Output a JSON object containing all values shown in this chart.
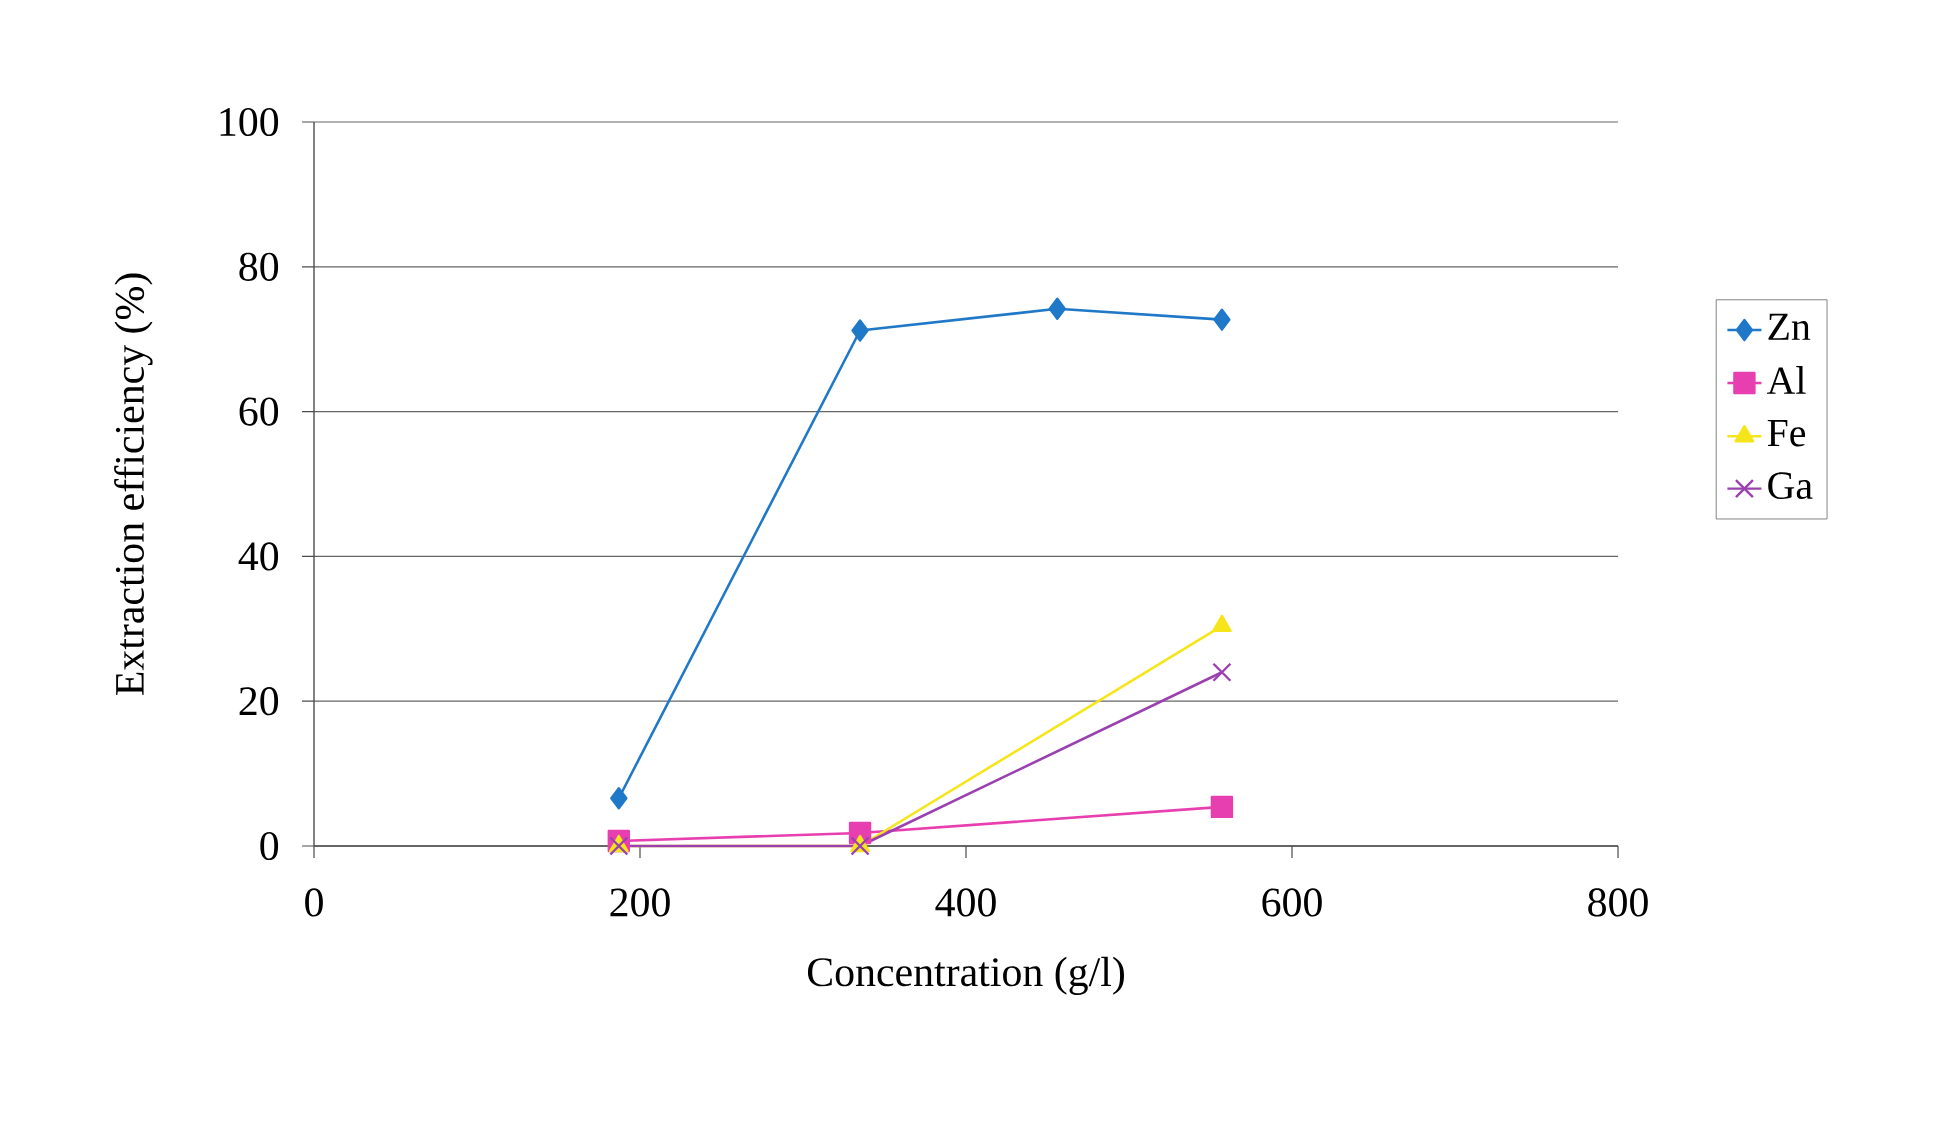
{
  "chart_data": {
    "type": "line",
    "xlabel": "Concentration (g/l)",
    "ylabel": "Extraction efficiency (%)",
    "xlim": [
      0,
      800
    ],
    "xticks": [
      0,
      200,
      400,
      600,
      800
    ],
    "ylim": [
      0,
      100
    ],
    "yticks": [
      0,
      20,
      40,
      60,
      80,
      100
    ],
    "grid": "y",
    "legend": "right",
    "line_style": "solid",
    "series": [
      {
        "name": "Zn",
        "color": "#1f78c8",
        "marker": "diamond",
        "x": [
          187,
          335,
          456,
          557
        ],
        "values": [
          6.6,
          71.2,
          74.2,
          72.7
        ]
      },
      {
        "name": "Al",
        "color": "#e83fb0",
        "marker": "square",
        "x": [
          187,
          335,
          557
        ],
        "values": [
          0.7,
          1.8,
          5.4
        ]
      },
      {
        "name": "Fe",
        "color": "#f5e51a",
        "marker": "triangle",
        "x": [
          187,
          335,
          557
        ],
        "values": [
          0,
          0,
          30.4
        ]
      },
      {
        "name": "Ga",
        "color": "#9b40b0",
        "marker": "cross",
        "x": [
          187,
          335,
          557
        ],
        "values": [
          0,
          0,
          24.0
        ]
      }
    ]
  }
}
